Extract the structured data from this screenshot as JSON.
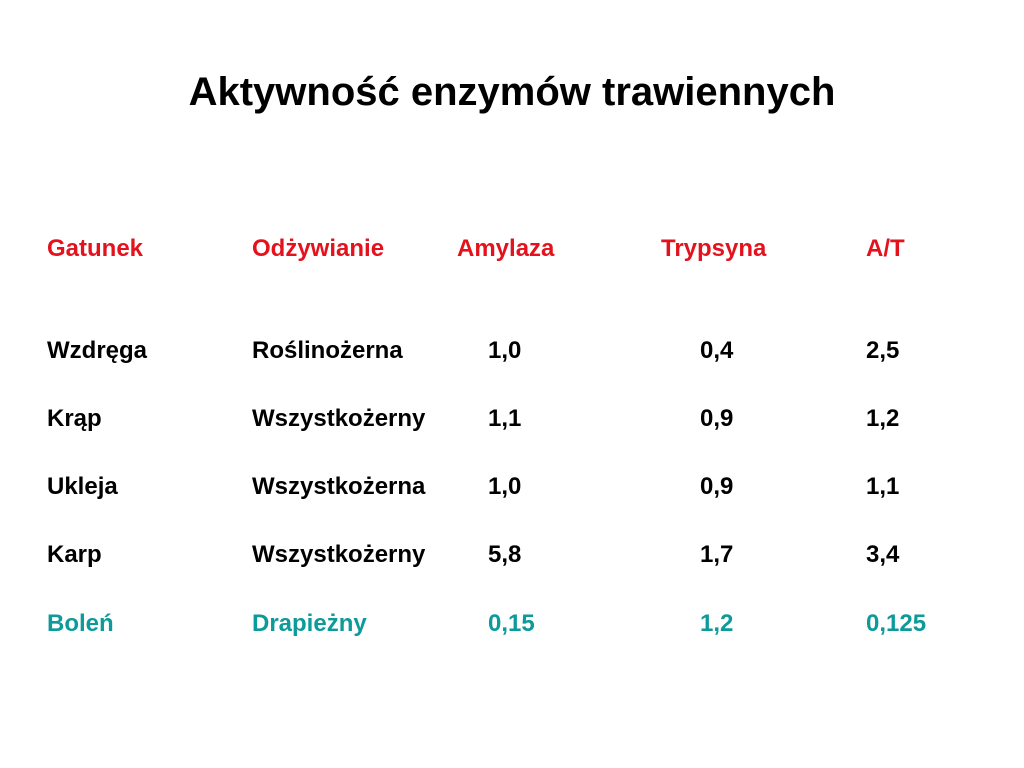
{
  "title": "Aktywność enzymów trawiennych",
  "table": {
    "header": [
      "Gatunek",
      "Odżywianie",
      "Amylaza",
      "Trypsyna",
      "A/T"
    ],
    "rows": [
      [
        "Wzdręga",
        "Roślinożerna",
        "1,0",
        "0,4",
        "2,5"
      ],
      [
        "Krąp",
        "Wszystkożerny",
        "1,1",
        "0,9",
        "1,2"
      ],
      [
        "Ukleja",
        "Wszystkożerna",
        "1,0",
        "0,9",
        "1,1"
      ],
      [
        "Karp",
        "Wszystkożerny",
        "5,8",
        "1,7",
        "3,4"
      ],
      [
        "Boleń",
        "Drapieżny",
        "0,15",
        "1,2",
        "0,125"
      ]
    ]
  }
}
